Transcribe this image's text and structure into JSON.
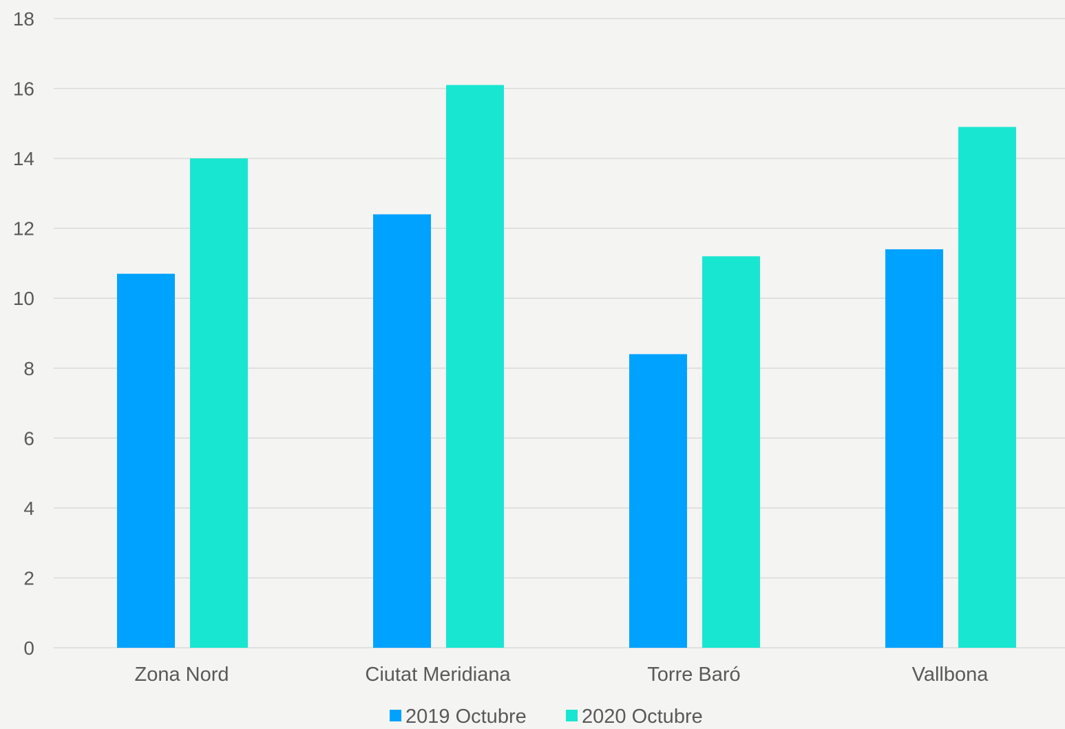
{
  "chart_data": {
    "type": "bar",
    "categories": [
      "Zona Nord",
      "Ciutat Meridiana",
      "Torre Baró",
      "Vallbona"
    ],
    "series": [
      {
        "name": "2019 Octubre",
        "color": "#00a2ff",
        "values": [
          10.7,
          12.4,
          8.4,
          11.4
        ]
      },
      {
        "name": "2020 Octubre",
        "color": "#19e6d0",
        "values": [
          14.0,
          16.1,
          11.2,
          14.9
        ]
      }
    ],
    "title": "",
    "xlabel": "",
    "ylabel": "",
    "ylim": [
      0,
      18
    ],
    "yticks": [
      "0",
      "2",
      "4",
      "6",
      "8",
      "10",
      "12",
      "14",
      "16",
      "18"
    ],
    "grid": true,
    "gridline_color": "#d9d9d9",
    "legend_position": "bottom"
  }
}
